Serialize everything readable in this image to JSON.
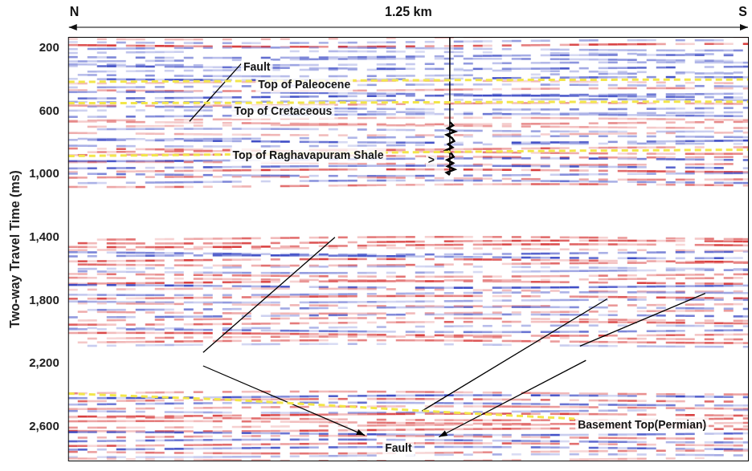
{
  "chart_data": {
    "type": "seismic_section",
    "direction_labels": {
      "left": "N",
      "right": "S"
    },
    "scale_bar": {
      "label": "1.25 km",
      "length_km": 1.25
    },
    "y_label": "Two-way Travel Time (ms)",
    "xlim": [
      0,
      1.25
    ],
    "ylim": [
      130,
      2820
    ],
    "yticks": [
      200,
      600,
      1000,
      1400,
      1800,
      2200,
      2600
    ],
    "grid": false,
    "tick_labels": "y",
    "horizons": [
      {
        "name": "Top of Paleocene",
        "color": "#f2e64a",
        "line_style": "dashed",
        "x": [
          0,
          0.3,
          0.6,
          0.9,
          1.25
        ],
        "values": [
          415,
          410,
          405,
          402,
          400
        ],
        "label_x": 0.349,
        "label_y": 435
      },
      {
        "name": "Top of Cretaceous",
        "color": "#f2e64a",
        "line_style": "dashed",
        "x": [
          0,
          0.3,
          0.6,
          0.9,
          1.25
        ],
        "values": [
          550,
          548,
          545,
          542,
          540
        ],
        "label_x": 0.305,
        "label_y": 605
      },
      {
        "name": "Top of Raghavapuram Shale",
        "color": "#f2e64a",
        "line_style": "dashed",
        "x": [
          0,
          0.3,
          0.6,
          0.9,
          1.25
        ],
        "values": [
          885,
          875,
          862,
          852,
          845
        ],
        "label_x": 0.302,
        "label_y": 885
      },
      {
        "name": "Basement Top(Permian)",
        "color": "#f2e64a",
        "line_style": "dashed",
        "x": [
          0,
          0.3,
          0.65,
          0.93
        ],
        "values": [
          2390,
          2430,
          2500,
          2550
        ],
        "label_x": 0.936,
        "label_y": 2590
      }
    ],
    "faults": [
      {
        "color": "#000000",
        "x": [
          0.223,
          0.318
        ],
        "values": [
          665,
          300
        ]
      },
      {
        "color": "#000000",
        "x": [
          0.248,
          0.49
        ],
        "values": [
          2130,
          1400
        ]
      },
      {
        "color": "#000000",
        "x": [
          0.65,
          0.99
        ],
        "values": [
          2500,
          1790
        ]
      },
      {
        "color": "#000000",
        "x": [
          0.94,
          1.17
        ],
        "values": [
          2090,
          1755
        ]
      }
    ],
    "fault_labels": [
      {
        "text": "Fault",
        "x": 0.322,
        "y": 325,
        "arrows": []
      },
      {
        "text": "Fault",
        "x": 0.582,
        "y": 2740,
        "arrows": [
          {
            "x": [
              0.248,
              0.545
            ],
            "values": [
              2215,
              2655
            ]
          },
          {
            "x": [
              0.951,
              0.681
            ],
            "values": [
              2180,
              2665
            ]
          }
        ]
      }
    ],
    "well": {
      "x": 0.701,
      "top": 130,
      "bottom": 1000,
      "log": {
        "x": [
          0.701,
          0.707,
          0.697,
          0.711,
          0.695,
          0.705,
          0.709,
          0.698,
          0.706,
          0.693,
          0.704,
          0.708,
          0.696,
          0.707,
          0.697,
          0.71,
          0.695,
          0.701
        ],
        "values": [
          670,
          690,
          710,
          730,
          750,
          770,
          790,
          810,
          830,
          850,
          870,
          890,
          910,
          930,
          950,
          970,
          990,
          1005
        ]
      }
    },
    "markers": [
      {
        "text": ">",
        "x": 0.661,
        "y": 915
      }
    ],
    "seismic": {
      "reflective_intervals": [
        [
          130,
          1080
        ],
        [
          1400,
          2100
        ],
        [
          2380,
          2820
        ]
      ],
      "colors": [
        "#d42a2a",
        "#2b3bc0"
      ]
    }
  }
}
